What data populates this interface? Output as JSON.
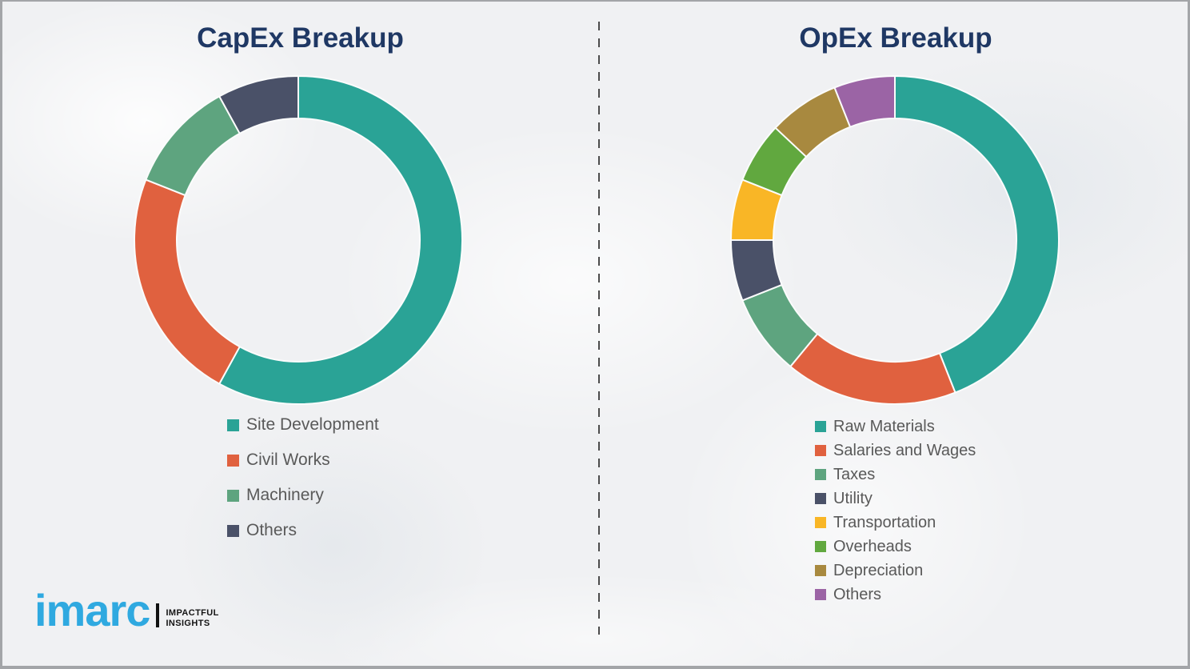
{
  "page": {
    "background_color": "#f0f1f3",
    "frame_border_color": "#a3a5a8",
    "divider_color": "#4b4b4b",
    "title_color": "#1f3864",
    "legend_text_color": "#595959"
  },
  "branding": {
    "logo_text": "imarc",
    "logo_color": "#2fa9e0",
    "tagline_line1": "IMPACTFUL",
    "tagline_line2": "INSIGHTS"
  },
  "chart_data": [
    {
      "type": "pie",
      "variant": "donut",
      "title": "CapEx Breakup",
      "start_angle_deg": 0,
      "direction": "clockwise",
      "legend_position": "bottom",
      "categories": [
        "Site Development",
        "Civil Works",
        "Machinery",
        "Others"
      ],
      "values": [
        58,
        23,
        11,
        8
      ],
      "unit": "percent",
      "colors": [
        "#2aa396",
        "#e0613f",
        "#5ea47f",
        "#4a5168"
      ]
    },
    {
      "type": "pie",
      "variant": "donut",
      "title": "OpEx Breakup",
      "start_angle_deg": 0,
      "direction": "clockwise",
      "legend_position": "bottom",
      "categories": [
        "Raw Materials",
        "Salaries and Wages",
        "Taxes",
        "Utility",
        "Transportation",
        "Overheads",
        "Depreciation",
        "Others"
      ],
      "values": [
        44,
        17,
        8,
        6,
        6,
        6,
        7,
        6
      ],
      "unit": "percent",
      "colors": [
        "#2aa396",
        "#e0613f",
        "#5ea47f",
        "#4a5168",
        "#f9b626",
        "#61a83f",
        "#a8893f",
        "#9b64a5"
      ]
    }
  ]
}
